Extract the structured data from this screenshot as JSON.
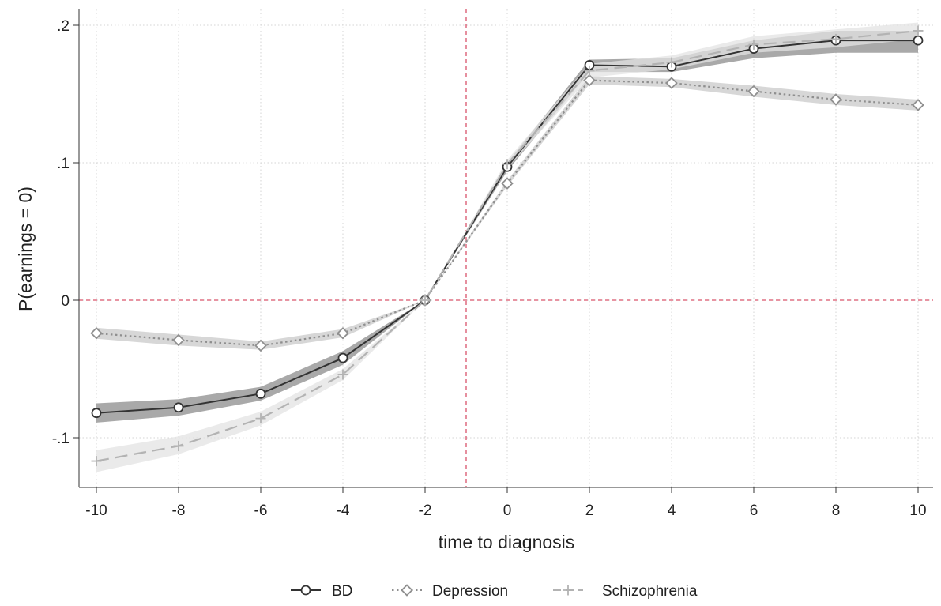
{
  "chart_data": {
    "type": "line",
    "xlabel": "time to diagnosis",
    "ylabel": "P(earnings = 0)",
    "xlim": [
      -10,
      10
    ],
    "ylim": [
      -0.135,
      0.205
    ],
    "x_ticks": [
      -10,
      -8,
      -6,
      -4,
      -2,
      0,
      2,
      4,
      6,
      8,
      10
    ],
    "x_tick_labels": [
      "-10",
      "-8",
      "-6",
      "-4",
      "-2",
      "0",
      "2",
      "4",
      "6",
      "8",
      "10"
    ],
    "y_ticks": [
      -0.1,
      0,
      0.1,
      0.2
    ],
    "y_tick_labels": [
      "-.1",
      "0",
      ".1",
      ".2"
    ],
    "grid": true,
    "reference_lines": {
      "x": -1,
      "y": 0,
      "color": "#d9536b"
    },
    "legend_position": "bottom",
    "x": [
      -10,
      -8,
      -6,
      -4,
      -2,
      0,
      2,
      4,
      6,
      8,
      10
    ],
    "series": [
      {
        "name": "BD",
        "marker": "circle",
        "line_style": "solid",
        "color": "#333333",
        "band_color": "#8c8c8c",
        "values": [
          -0.082,
          -0.078,
          -0.068,
          -0.042,
          0.0,
          0.097,
          0.171,
          0.17,
          0.183,
          0.189,
          0.189
        ],
        "ci_low": [
          -0.089,
          -0.084,
          -0.073,
          -0.047,
          0.0,
          0.094,
          0.166,
          0.166,
          0.176,
          0.18,
          0.18
        ],
        "ci_high": [
          -0.075,
          -0.072,
          -0.063,
          -0.037,
          0.0,
          0.1,
          0.175,
          0.176,
          0.189,
          0.196,
          0.196
        ]
      },
      {
        "name": "Depression",
        "marker": "diamond",
        "line_style": "dotted",
        "color": "#8f8f8f",
        "band_color": "#c9c9c9",
        "values": [
          -0.024,
          -0.029,
          -0.033,
          -0.024,
          0.0,
          0.085,
          0.16,
          0.158,
          0.152,
          0.146,
          0.142
        ],
        "ci_low": [
          -0.028,
          -0.033,
          -0.036,
          -0.027,
          0.0,
          0.083,
          0.157,
          0.155,
          0.148,
          0.142,
          0.138
        ],
        "ci_high": [
          -0.02,
          -0.025,
          -0.03,
          -0.021,
          0.0,
          0.087,
          0.163,
          0.161,
          0.156,
          0.15,
          0.146
        ]
      },
      {
        "name": "Schizophrenia",
        "marker": "plus",
        "line_style": "dashed",
        "color": "#b3b3b3",
        "band_color": "#e3e3e3",
        "values": [
          -0.117,
          -0.106,
          -0.086,
          -0.054,
          0.0,
          0.099,
          0.167,
          0.173,
          0.186,
          0.19,
          0.196
        ],
        "ci_low": [
          -0.125,
          -0.112,
          -0.091,
          -0.058,
          0.0,
          0.096,
          0.162,
          0.168,
          0.18,
          0.184,
          0.19
        ],
        "ci_high": [
          -0.109,
          -0.099,
          -0.081,
          -0.05,
          0.0,
          0.102,
          0.172,
          0.178,
          0.192,
          0.197,
          0.202
        ]
      }
    ]
  }
}
